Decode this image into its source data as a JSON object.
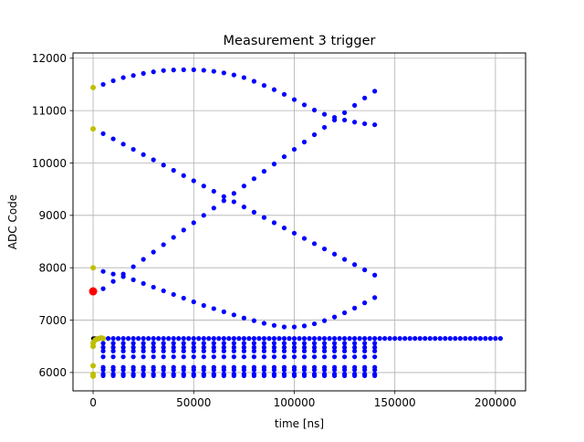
{
  "chart_data": {
    "type": "scatter",
    "title": "Measurement 3 trigger",
    "xlabel": "time [ns]",
    "ylabel": "ADC Code",
    "xlim": [
      -10000,
      215000
    ],
    "ylim": [
      5650,
      12100
    ],
    "grid": true,
    "xticks": [
      0,
      50000,
      100000,
      150000,
      200000
    ],
    "yticks": [
      6000,
      7000,
      8000,
      9000,
      10000,
      11000,
      12000
    ],
    "colors": {
      "main": "#0000ff",
      "start": "#bfbf00",
      "trigger": "#ff0000",
      "dense": "#000000"
    },
    "series": [
      {
        "color": "#0000ff",
        "x": [
          5000,
          10000,
          15000,
          20000,
          25000,
          30000,
          35000,
          40000,
          45000,
          50000,
          55000,
          60000,
          65000,
          70000,
          75000,
          80000,
          85000,
          90000,
          95000,
          100000,
          105000,
          110000,
          115000,
          120000,
          125000,
          130000,
          135000,
          140000,
          5000,
          10000,
          15000,
          20000,
          25000,
          30000,
          35000,
          40000,
          45000,
          50000,
          55000,
          60000,
          65000,
          70000,
          75000,
          80000,
          85000,
          90000,
          95000,
          100000,
          105000,
          110000,
          115000,
          120000,
          125000,
          130000,
          135000,
          140000,
          5000,
          10000,
          15000,
          20000,
          25000,
          30000,
          35000,
          40000,
          45000,
          50000,
          55000,
          60000,
          65000,
          70000,
          75000,
          80000,
          85000,
          90000,
          95000,
          100000,
          105000,
          110000,
          115000,
          120000,
          125000,
          130000,
          135000,
          140000,
          5000,
          10000,
          15000,
          20000,
          25000,
          30000,
          35000,
          40000,
          45000,
          50000,
          55000,
          60000,
          65000,
          70000,
          75000,
          80000,
          85000,
          90000,
          95000,
          100000,
          105000,
          110000,
          115000,
          120000,
          125000,
          130000,
          135000,
          140000
        ],
        "y": [
          11500,
          11570,
          11630,
          11670,
          11710,
          11740,
          11765,
          11775,
          11780,
          11780,
          11770,
          11750,
          11720,
          11680,
          11630,
          11560,
          11480,
          11400,
          11310,
          11210,
          11110,
          11010,
          10930,
          10870,
          10820,
          10780,
          10750,
          10730,
          10560,
          10460,
          10360,
          10260,
          10160,
          10060,
          9960,
          9860,
          9760,
          9660,
          9560,
          9460,
          9360,
          9260,
          9160,
          9060,
          8960,
          8860,
          8760,
          8660,
          8560,
          8460,
          8360,
          8260,
          8160,
          8060,
          7960,
          7860,
          7600,
          7740,
          7880,
          8020,
          8160,
          8300,
          8440,
          8580,
          8720,
          8860,
          9000,
          9140,
          9280,
          9420,
          9560,
          9700,
          9840,
          9980,
          10120,
          10260,
          10400,
          10540,
          10680,
          10820,
          10960,
          11100,
          11240,
          11370,
          7930,
          7880,
          7830,
          7770,
          7700,
          7630,
          7560,
          7490,
          7420,
          7350,
          7280,
          7220,
          7160,
          7100,
          7040,
          6990,
          6940,
          6900,
          6870,
          6870,
          6890,
          6930,
          6990,
          7060,
          7140,
          7230,
          7330,
          7430
        ]
      }
    ],
    "flat_lines": [
      {
        "color": "#0000ff",
        "y": 6650,
        "x_start": 5000,
        "x_end": 204000,
        "step": 2500
      },
      {
        "color": "#0000ff",
        "y": 6560,
        "x_start": 5000,
        "x_end": 140000,
        "step": 5000
      },
      {
        "color": "#0000ff",
        "y": 6480,
        "x_start": 5000,
        "x_end": 140000,
        "step": 5000
      },
      {
        "color": "#0000ff",
        "y": 6410,
        "x_start": 5000,
        "x_end": 140000,
        "step": 5000
      },
      {
        "color": "#0000ff",
        "y": 6300,
        "x_start": 5000,
        "x_end": 140000,
        "step": 5000
      },
      {
        "color": "#0000ff",
        "y": 6100,
        "x_start": 5000,
        "x_end": 140000,
        "step": 5000
      },
      {
        "color": "#0000ff",
        "y": 6050,
        "x_start": 5000,
        "x_end": 140000,
        "step": 5000
      },
      {
        "color": "#0000ff",
        "y": 5970,
        "x_start": 5000,
        "x_end": 140000,
        "step": 5000
      },
      {
        "color": "#0000ff",
        "y": 5940,
        "x_start": 5000,
        "x_end": 140000,
        "step": 5000
      }
    ],
    "start_points": {
      "color": "#bfbf00",
      "x": [
        0,
        0,
        0,
        0,
        0,
        0,
        0,
        0,
        1000,
        2000,
        3000,
        4000,
        5000
      ],
      "y": [
        11440,
        10650,
        8000,
        6130,
        6500,
        6560,
        5970,
        5930,
        6620,
        6640,
        6650,
        6660,
        6650
      ]
    },
    "trigger_point": {
      "color": "#ff0000",
      "x": 0,
      "y": 7550
    }
  }
}
